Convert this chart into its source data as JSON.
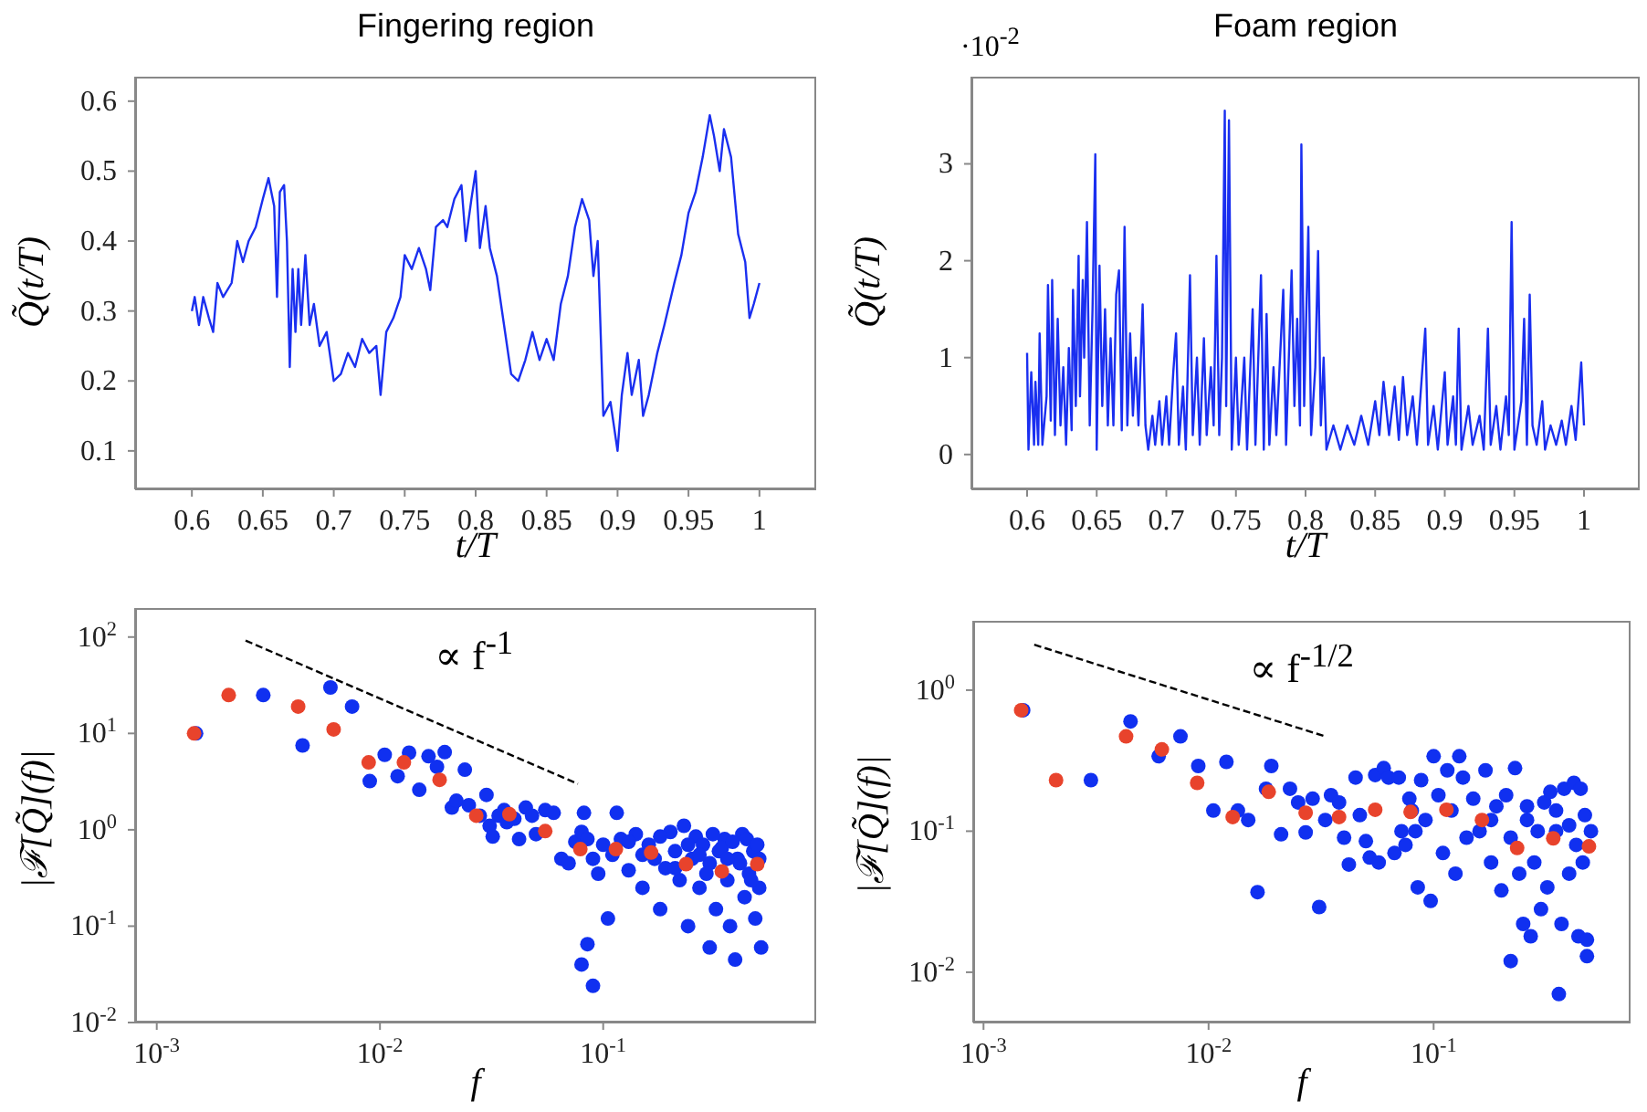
{
  "chart_data": [
    {
      "type": "line",
      "title": "Fingering region",
      "xlabel": "t/T",
      "ylabel": "Q̃(t/T)",
      "xlim": [
        0.56,
        1.04
      ],
      "xticks": [
        0.6,
        0.65,
        0.7,
        0.75,
        0.8,
        0.85,
        0.9,
        0.95,
        1
      ],
      "ylim": [
        0.045,
        0.635
      ],
      "yticks": [
        0.1,
        0.2,
        0.3,
        0.4,
        0.5,
        0.6
      ],
      "series": [
        {
          "color": "#1a2ff0",
          "x": [
            0.6,
            0.602,
            0.605,
            0.608,
            0.612,
            0.615,
            0.618,
            0.622,
            0.628,
            0.632,
            0.636,
            0.64,
            0.645,
            0.65,
            0.654,
            0.658,
            0.66,
            0.662,
            0.665,
            0.667,
            0.669,
            0.671,
            0.673,
            0.675,
            0.677,
            0.68,
            0.683,
            0.686,
            0.69,
            0.695,
            0.7,
            0.705,
            0.71,
            0.715,
            0.72,
            0.725,
            0.73,
            0.733,
            0.737,
            0.742,
            0.747,
            0.75,
            0.755,
            0.76,
            0.765,
            0.768,
            0.772,
            0.777,
            0.78,
            0.785,
            0.79,
            0.793,
            0.797,
            0.8,
            0.803,
            0.807,
            0.81,
            0.815,
            0.82,
            0.825,
            0.83,
            0.835,
            0.84,
            0.845,
            0.85,
            0.855,
            0.86,
            0.865,
            0.87,
            0.875,
            0.88,
            0.883,
            0.886,
            0.89,
            0.895,
            0.9,
            0.903,
            0.907,
            0.91,
            0.915,
            0.918,
            0.922,
            0.928,
            0.933,
            0.94,
            0.945,
            0.95,
            0.955,
            0.96,
            0.965,
            0.968,
            0.972,
            0.975,
            0.98,
            0.985,
            0.99,
            0.993,
            0.996,
            1.0
          ],
          "values": [
            0.3,
            0.32,
            0.28,
            0.32,
            0.29,
            0.27,
            0.34,
            0.32,
            0.34,
            0.4,
            0.37,
            0.4,
            0.42,
            0.46,
            0.49,
            0.45,
            0.32,
            0.47,
            0.48,
            0.4,
            0.22,
            0.36,
            0.27,
            0.36,
            0.28,
            0.38,
            0.28,
            0.31,
            0.25,
            0.27,
            0.2,
            0.21,
            0.24,
            0.22,
            0.26,
            0.24,
            0.25,
            0.18,
            0.27,
            0.29,
            0.32,
            0.38,
            0.36,
            0.39,
            0.36,
            0.33,
            0.42,
            0.43,
            0.42,
            0.46,
            0.48,
            0.4,
            0.46,
            0.5,
            0.39,
            0.45,
            0.39,
            0.35,
            0.28,
            0.21,
            0.2,
            0.23,
            0.27,
            0.23,
            0.26,
            0.23,
            0.31,
            0.35,
            0.42,
            0.46,
            0.43,
            0.35,
            0.4,
            0.15,
            0.17,
            0.1,
            0.18,
            0.24,
            0.18,
            0.23,
            0.15,
            0.18,
            0.24,
            0.28,
            0.34,
            0.38,
            0.44,
            0.47,
            0.52,
            0.58,
            0.55,
            0.5,
            0.56,
            0.52,
            0.41,
            0.37,
            0.29,
            0.31,
            0.34
          ]
        }
      ]
    },
    {
      "type": "line",
      "title": "Foam region",
      "xlabel": "t/T",
      "ylabel": "Q̃(t/T)",
      "annotations": [
        "·10$^{-2}$"
      ],
      "xlim": [
        0.56,
        1.04
      ],
      "xticks": [
        0.6,
        0.65,
        0.7,
        0.75,
        0.8,
        0.85,
        0.9,
        0.95,
        1
      ],
      "ylim": [
        -0.36,
        3.9
      ],
      "yticks": [
        0,
        1,
        2,
        3
      ],
      "series": [
        {
          "color": "#1a2ff0",
          "x": [
            0.6,
            0.601,
            0.603,
            0.605,
            0.606,
            0.608,
            0.609,
            0.611,
            0.614,
            0.615,
            0.617,
            0.618,
            0.62,
            0.622,
            0.624,
            0.626,
            0.628,
            0.63,
            0.632,
            0.633,
            0.635,
            0.637,
            0.638,
            0.64,
            0.641,
            0.643,
            0.645,
            0.647,
            0.649,
            0.65,
            0.652,
            0.654,
            0.656,
            0.658,
            0.66,
            0.662,
            0.664,
            0.666,
            0.668,
            0.67,
            0.672,
            0.674,
            0.676,
            0.678,
            0.68,
            0.683,
            0.685,
            0.687,
            0.69,
            0.692,
            0.695,
            0.697,
            0.7,
            0.702,
            0.705,
            0.707,
            0.709,
            0.712,
            0.714,
            0.717,
            0.719,
            0.722,
            0.724,
            0.727,
            0.729,
            0.732,
            0.734,
            0.736,
            0.738,
            0.74,
            0.742,
            0.743,
            0.745,
            0.747,
            0.75,
            0.752,
            0.756,
            0.758,
            0.762,
            0.764,
            0.768,
            0.77,
            0.772,
            0.774,
            0.777,
            0.779,
            0.784,
            0.786,
            0.79,
            0.792,
            0.794,
            0.796,
            0.797,
            0.799,
            0.802,
            0.804,
            0.807,
            0.809,
            0.811,
            0.813,
            0.815,
            0.82,
            0.825,
            0.83,
            0.835,
            0.84,
            0.845,
            0.85,
            0.853,
            0.856,
            0.86,
            0.864,
            0.867,
            0.87,
            0.873,
            0.877,
            0.88,
            0.886,
            0.888,
            0.892,
            0.895,
            0.9,
            0.902,
            0.906,
            0.908,
            0.91,
            0.912,
            0.917,
            0.92,
            0.925,
            0.928,
            0.931,
            0.933,
            0.937,
            0.94,
            0.944,
            0.946,
            0.948,
            0.95,
            0.955,
            0.957,
            0.959,
            0.961,
            0.963,
            0.966,
            0.97,
            0.972,
            0.976,
            0.98,
            0.984,
            0.987,
            0.991,
            0.994,
            0.996,
            0.998,
            1.0
          ],
          "values": [
            1.05,
            0.05,
            0.85,
            0.1,
            0.75,
            0.1,
            1.25,
            0.1,
            0.6,
            1.75,
            0.35,
            1.8,
            0.2,
            1.4,
            0.3,
            0.9,
            0.1,
            1.1,
            0.25,
            1.7,
            0.5,
            2.05,
            0.6,
            1.8,
            1.0,
            2.4,
            0.3,
            1.5,
            3.1,
            0.05,
            1.95,
            0.5,
            1.5,
            0.3,
            1.2,
            0.3,
            1.65,
            1.9,
            0.25,
            2.35,
            0.3,
            1.25,
            0.4,
            1.0,
            0.3,
            1.55,
            0.3,
            0.05,
            0.4,
            0.1,
            0.55,
            0.1,
            0.6,
            0.1,
            0.85,
            1.25,
            0.1,
            0.7,
            0.05,
            1.85,
            0.2,
            1.0,
            0.1,
            1.2,
            0.2,
            0.9,
            0.3,
            2.05,
            0.2,
            1.0,
            3.55,
            0.5,
            3.45,
            0.05,
            1.0,
            0.1,
            1.0,
            0.05,
            1.5,
            0.1,
            1.85,
            0.05,
            1.45,
            0.1,
            0.9,
            0.2,
            1.7,
            0.1,
            1.9,
            0.5,
            1.4,
            0.3,
            3.2,
            0.5,
            2.35,
            0.2,
            0.9,
            2.1,
            0.3,
            1.0,
            0.05,
            0.3,
            0.05,
            0.3,
            0.1,
            0.4,
            0.1,
            0.55,
            0.2,
            0.75,
            0.2,
            0.7,
            0.15,
            0.8,
            0.2,
            0.6,
            0.1,
            1.3,
            0.1,
            0.5,
            0.05,
            0.85,
            0.1,
            0.6,
            0.1,
            1.3,
            0.05,
            0.5,
            0.1,
            0.4,
            0.05,
            1.3,
            0.1,
            0.5,
            0.05,
            0.6,
            0.2,
            2.4,
            0.05,
            0.55,
            1.4,
            0.1,
            1.65,
            0.3,
            0.1,
            0.55,
            0.05,
            0.3,
            0.1,
            0.35,
            0.1,
            0.5,
            0.15,
            0.55,
            0.95,
            0.3
          ]
        }
      ]
    },
    {
      "type": "scatter",
      "xlabel": "f",
      "ylabel": "|ℱ[Q̃](f)|",
      "log": "xy",
      "marker": "circle",
      "annotations": [
        "∝ f$^{-1}$"
      ],
      "xlim": [
        0.0008,
        0.9
      ],
      "xticks": [
        {
          "value": 0.001,
          "label": "10$^{-3}$"
        },
        {
          "value": 0.01,
          "label": "10$^{-2}$"
        },
        {
          "value": 0.1,
          "label": "10$^{-1}$"
        }
      ],
      "ylim": [
        0.01,
        200
      ],
      "yticks": [
        {
          "value": 0.01,
          "label": "10$^{-2}$"
        },
        {
          "value": 0.1,
          "label": "10$^{-1}$"
        },
        {
          "value": 1,
          "label": "10$^{0}$"
        },
        {
          "value": 10,
          "label": "10$^{1}$"
        },
        {
          "value": 100,
          "label": "10$^{2}$"
        }
      ],
      "series": [
        {
          "color": "#1030f0",
          "x": [
            0.0015,
            0.003,
            0.0045,
            0.006,
            0.0075,
            0.009,
            0.0105,
            0.012,
            0.0135,
            0.015,
            0.0165,
            0.018,
            0.0195,
            0.021,
            0.022,
            0.024,
            0.025,
            0.028,
            0.03,
            0.031,
            0.032,
            0.034,
            0.036,
            0.037,
            0.04,
            0.042,
            0.045,
            0.048,
            0.05,
            0.055,
            0.06,
            0.065,
            0.07,
            0.075,
            0.08,
            0.082,
            0.085,
            0.09,
            0.095,
            0.08,
            0.085,
            0.09,
            0.1,
            0.105,
            0.11,
            0.115,
            0.12,
            0.13,
            0.14,
            0.15,
            0.16,
            0.17,
            0.18,
            0.19,
            0.2,
            0.21,
            0.22,
            0.23,
            0.24,
            0.25,
            0.26,
            0.27,
            0.28,
            0.3,
            0.3,
            0.32,
            0.33,
            0.35,
            0.36,
            0.37,
            0.39,
            0.4,
            0.42,
            0.43,
            0.45,
            0.47,
            0.48,
            0.5,
            0.5,
            0.51,
            0.13,
            0.15,
            0.18,
            0.21,
            0.24,
            0.27,
            0.31,
            0.34,
            0.38,
            0.41,
            0.44,
            0.46,
            0.49,
            0.36,
            0.29
          ],
          "values": [
            10,
            25,
            7.5,
            30,
            19,
            3.2,
            6,
            3.6,
            6.3,
            2.6,
            5.8,
            4.5,
            6.4,
            1.7,
            2.0,
            4.2,
            1.8,
            1.4,
            2.3,
            1.1,
            0.85,
            1.4,
            1.6,
            1.2,
            1.3,
            0.8,
            1.7,
            1.4,
            0.9,
            1.6,
            1.5,
            0.5,
            0.45,
            0.75,
            0.95,
            1.5,
            0.8,
            0.5,
            0.35,
            0.04,
            0.065,
            0.024,
            0.7,
            0.12,
            0.55,
            1.5,
            0.8,
            0.38,
            0.9,
            0.25,
            0.7,
            0.5,
            0.15,
            0.4,
            0.95,
            0.6,
            0.3,
            1.1,
            0.1,
            0.5,
            0.85,
            0.25,
            0.7,
            0.45,
            0.06,
            0.15,
            0.6,
            0.8,
            0.3,
            0.1,
            0.045,
            0.5,
            0.9,
            0.2,
            0.35,
            0.6,
            0.12,
            0.5,
            0.25,
            0.06,
            0.75,
            0.55,
            0.85,
            0.4,
            0.7,
            0.55,
            0.9,
            0.65,
            0.75,
            0.45,
            0.8,
            0.3,
            0.7,
            0.5,
            0.35
          ]
        },
        {
          "color": "#e8432c",
          "x": [
            0.00147,
            0.0021,
            0.0043,
            0.0062,
            0.0089,
            0.0128,
            0.0185,
            0.027,
            0.038,
            0.055,
            0.079,
            0.114,
            0.164,
            0.235,
            0.34,
            0.49
          ],
          "values": [
            10,
            25,
            19,
            11,
            5,
            5,
            3.3,
            1.4,
            1.45,
            0.97,
            0.63,
            0.63,
            0.58,
            0.44,
            0.37,
            0.44
          ]
        },
        {
          "type": "line",
          "color": "#000000",
          "line_style": "dashed",
          "marker": "none",
          "x": [
            0.0025,
            0.077
          ],
          "values": [
            92,
            3.0
          ]
        }
      ]
    },
    {
      "type": "scatter",
      "xlabel": "f",
      "ylabel": "|ℱ[Q̃](f)|",
      "log": "xy",
      "marker": "circle",
      "annotations": [
        "∝ f$^{-1/2}$"
      ],
      "xlim": [
        0.0009,
        0.75
      ],
      "xticks": [
        {
          "value": 0.001,
          "label": "10$^{-3}$"
        },
        {
          "value": 0.01,
          "label": "10$^{-2}$"
        },
        {
          "value": 0.1,
          "label": "10$^{-1}$"
        }
      ],
      "ylim": [
        0.0044,
        3.1
      ],
      "yticks": [
        {
          "value": 0.01,
          "label": "10$^{-2}$"
        },
        {
          "value": 0.1,
          "label": "10$^{-1}$"
        },
        {
          "value": 1,
          "label": "10$^{0}$"
        }
      ],
      "series": [
        {
          "color": "#1030f0",
          "x": [
            0.0015,
            0.003,
            0.0045,
            0.006,
            0.0075,
            0.009,
            0.0105,
            0.012,
            0.0135,
            0.015,
            0.0165,
            0.018,
            0.019,
            0.021,
            0.023,
            0.025,
            0.027,
            0.029,
            0.031,
            0.033,
            0.035,
            0.038,
            0.04,
            0.042,
            0.045,
            0.047,
            0.05,
            0.052,
            0.055,
            0.057,
            0.06,
            0.063,
            0.067,
            0.07,
            0.072,
            0.075,
            0.078,
            0.08,
            0.083,
            0.085,
            0.088,
            0.092,
            0.097,
            0.1,
            0.105,
            0.11,
            0.115,
            0.12,
            0.125,
            0.13,
            0.135,
            0.14,
            0.15,
            0.16,
            0.17,
            0.18,
            0.19,
            0.2,
            0.21,
            0.22,
            0.23,
            0.24,
            0.25,
            0.26,
            0.27,
            0.28,
            0.3,
            0.31,
            0.32,
            0.33,
            0.35,
            0.36,
            0.37,
            0.38,
            0.4,
            0.42,
            0.43,
            0.44,
            0.45,
            0.47,
            0.48,
            0.5,
            0.48,
            0.35,
            0.29,
            0.22,
            0.18,
            0.26,
            0.4,
            0.46
          ],
          "values": [
            0.72,
            0.23,
            0.6,
            0.34,
            0.47,
            0.29,
            0.14,
            0.31,
            0.14,
            0.12,
            0.037,
            0.2,
            0.29,
            0.095,
            0.2,
            0.16,
            0.098,
            0.17,
            0.029,
            0.12,
            0.18,
            0.16,
            0.09,
            0.058,
            0.24,
            0.13,
            0.085,
            0.065,
            0.25,
            0.06,
            0.28,
            0.24,
            0.07,
            0.24,
            0.1,
            0.08,
            0.17,
            0.14,
            0.1,
            0.04,
            0.23,
            0.12,
            0.032,
            0.34,
            0.18,
            0.07,
            0.27,
            0.14,
            0.05,
            0.34,
            0.24,
            0.09,
            0.17,
            0.1,
            0.27,
            0.06,
            0.15,
            0.038,
            0.18,
            0.012,
            0.28,
            0.05,
            0.022,
            0.12,
            0.018,
            0.06,
            0.028,
            0.16,
            0.04,
            0.19,
            0.1,
            0.007,
            0.022,
            0.2,
            0.05,
            0.22,
            0.08,
            0.018,
            0.2,
            0.13,
            0.017,
            0.1,
            0.013,
            0.14,
            0.1,
            0.09,
            0.12,
            0.15,
            0.11,
            0.06
          ]
        },
        {
          "color": "#e8432c",
          "x": [
            0.00147,
            0.0021,
            0.0043,
            0.0062,
            0.0089,
            0.0128,
            0.0185,
            0.027,
            0.038,
            0.055,
            0.079,
            0.114,
            0.164,
            0.235,
            0.34,
            0.49
          ],
          "values": [
            0.72,
            0.23,
            0.47,
            0.38,
            0.22,
            0.126,
            0.19,
            0.135,
            0.126,
            0.142,
            0.137,
            0.142,
            0.12,
            0.076,
            0.089,
            0.078
          ]
        },
        {
          "type": "line",
          "color": "#000000",
          "line_style": "dashed",
          "marker": "none",
          "x": [
            0.00168,
            0.033
          ],
          "values": [
            2.1,
            0.47
          ]
        }
      ]
    }
  ]
}
